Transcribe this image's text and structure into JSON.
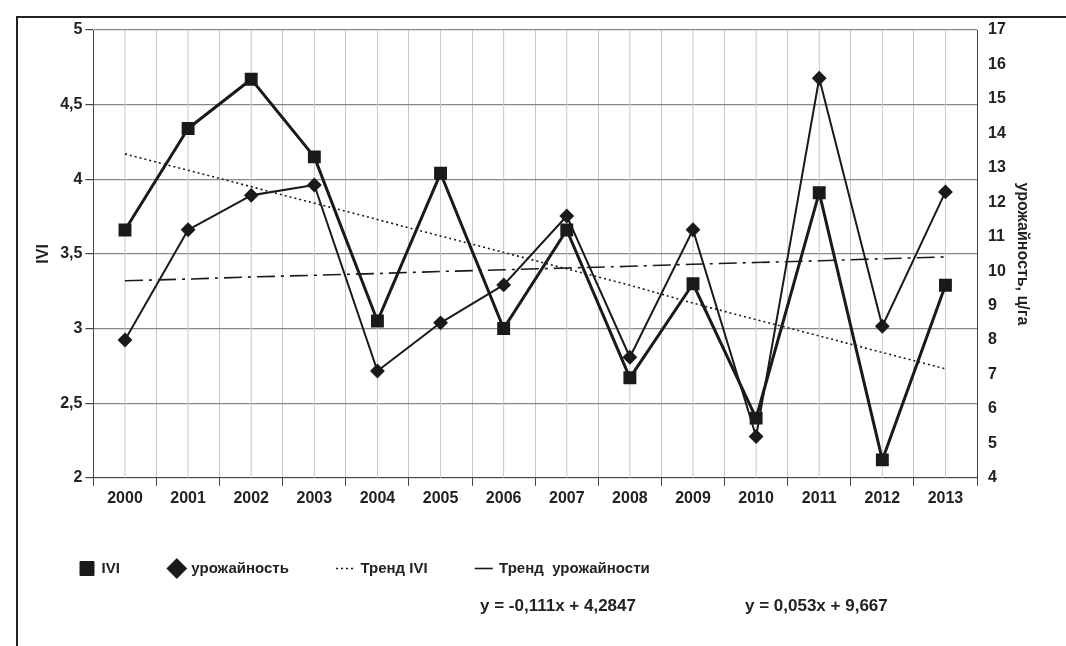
{
  "chart_data": {
    "type": "line",
    "ylabel": "IVI",
    "y2label": "урожайность, ц/га",
    "categories": [
      "2000",
      "2001",
      "2002",
      "2003",
      "2004",
      "2005",
      "2006",
      "2007",
      "2008",
      "2009",
      "2010",
      "2011",
      "2012",
      "2013"
    ],
    "series": [
      {
        "name": "IVI",
        "color": "#1a1a1a",
        "marker": "square",
        "values": [
          3.66,
          4.34,
          4.67,
          4.15,
          3.05,
          4.04,
          3.0,
          3.66,
          2.67,
          3.3,
          2.4,
          3.91,
          2.12,
          3.29
        ]
      },
      {
        "name": "урожайность",
        "color": "#1a1a1a",
        "marker": "diamond",
        "axis": "y2",
        "values": [
          8.0,
          11.2,
          12.2,
          12.5,
          7.1,
          8.5,
          9.6,
          11.6,
          7.5,
          11.2,
          5.2,
          15.6,
          8.4,
          12.3
        ]
      },
      {
        "name": "Тренд IVI",
        "color": "#1a1a1a",
        "marker": "none",
        "line_style": "dotted",
        "values": [
          4.17,
          4.06,
          3.95,
          3.84,
          3.73,
          3.62,
          3.51,
          3.4,
          3.29,
          3.17,
          3.06,
          2.95,
          2.84,
          2.73
        ]
      },
      {
        "name": "Тренд  урожайности",
        "color": "#1a1a1a",
        "marker": "none",
        "line_style": "dashed",
        "axis": "y2",
        "values": [
          9.72,
          9.77,
          9.83,
          9.88,
          9.93,
          9.99,
          10.04,
          10.09,
          10.14,
          10.2,
          10.25,
          10.3,
          10.36,
          10.41
        ]
      }
    ],
    "ylim": [
      2,
      5
    ],
    "yticks": [
      2,
      {
        "value": 2.5,
        "label": "2,5"
      },
      3,
      {
        "value": 3.5,
        "label": "3,5"
      },
      4,
      {
        "value": 4.5,
        "label": "4,5"
      },
      5
    ],
    "y2lim": [
      4,
      17
    ],
    "y2ticks": [
      4,
      5,
      6,
      7,
      8,
      9,
      10,
      11,
      12,
      13,
      14,
      15,
      16,
      17
    ],
    "grid": true,
    "legend": "bottom",
    "annotations": [
      "y = -0,111x + 4,2847",
      "y = 0,053x + 9,667"
    ]
  }
}
